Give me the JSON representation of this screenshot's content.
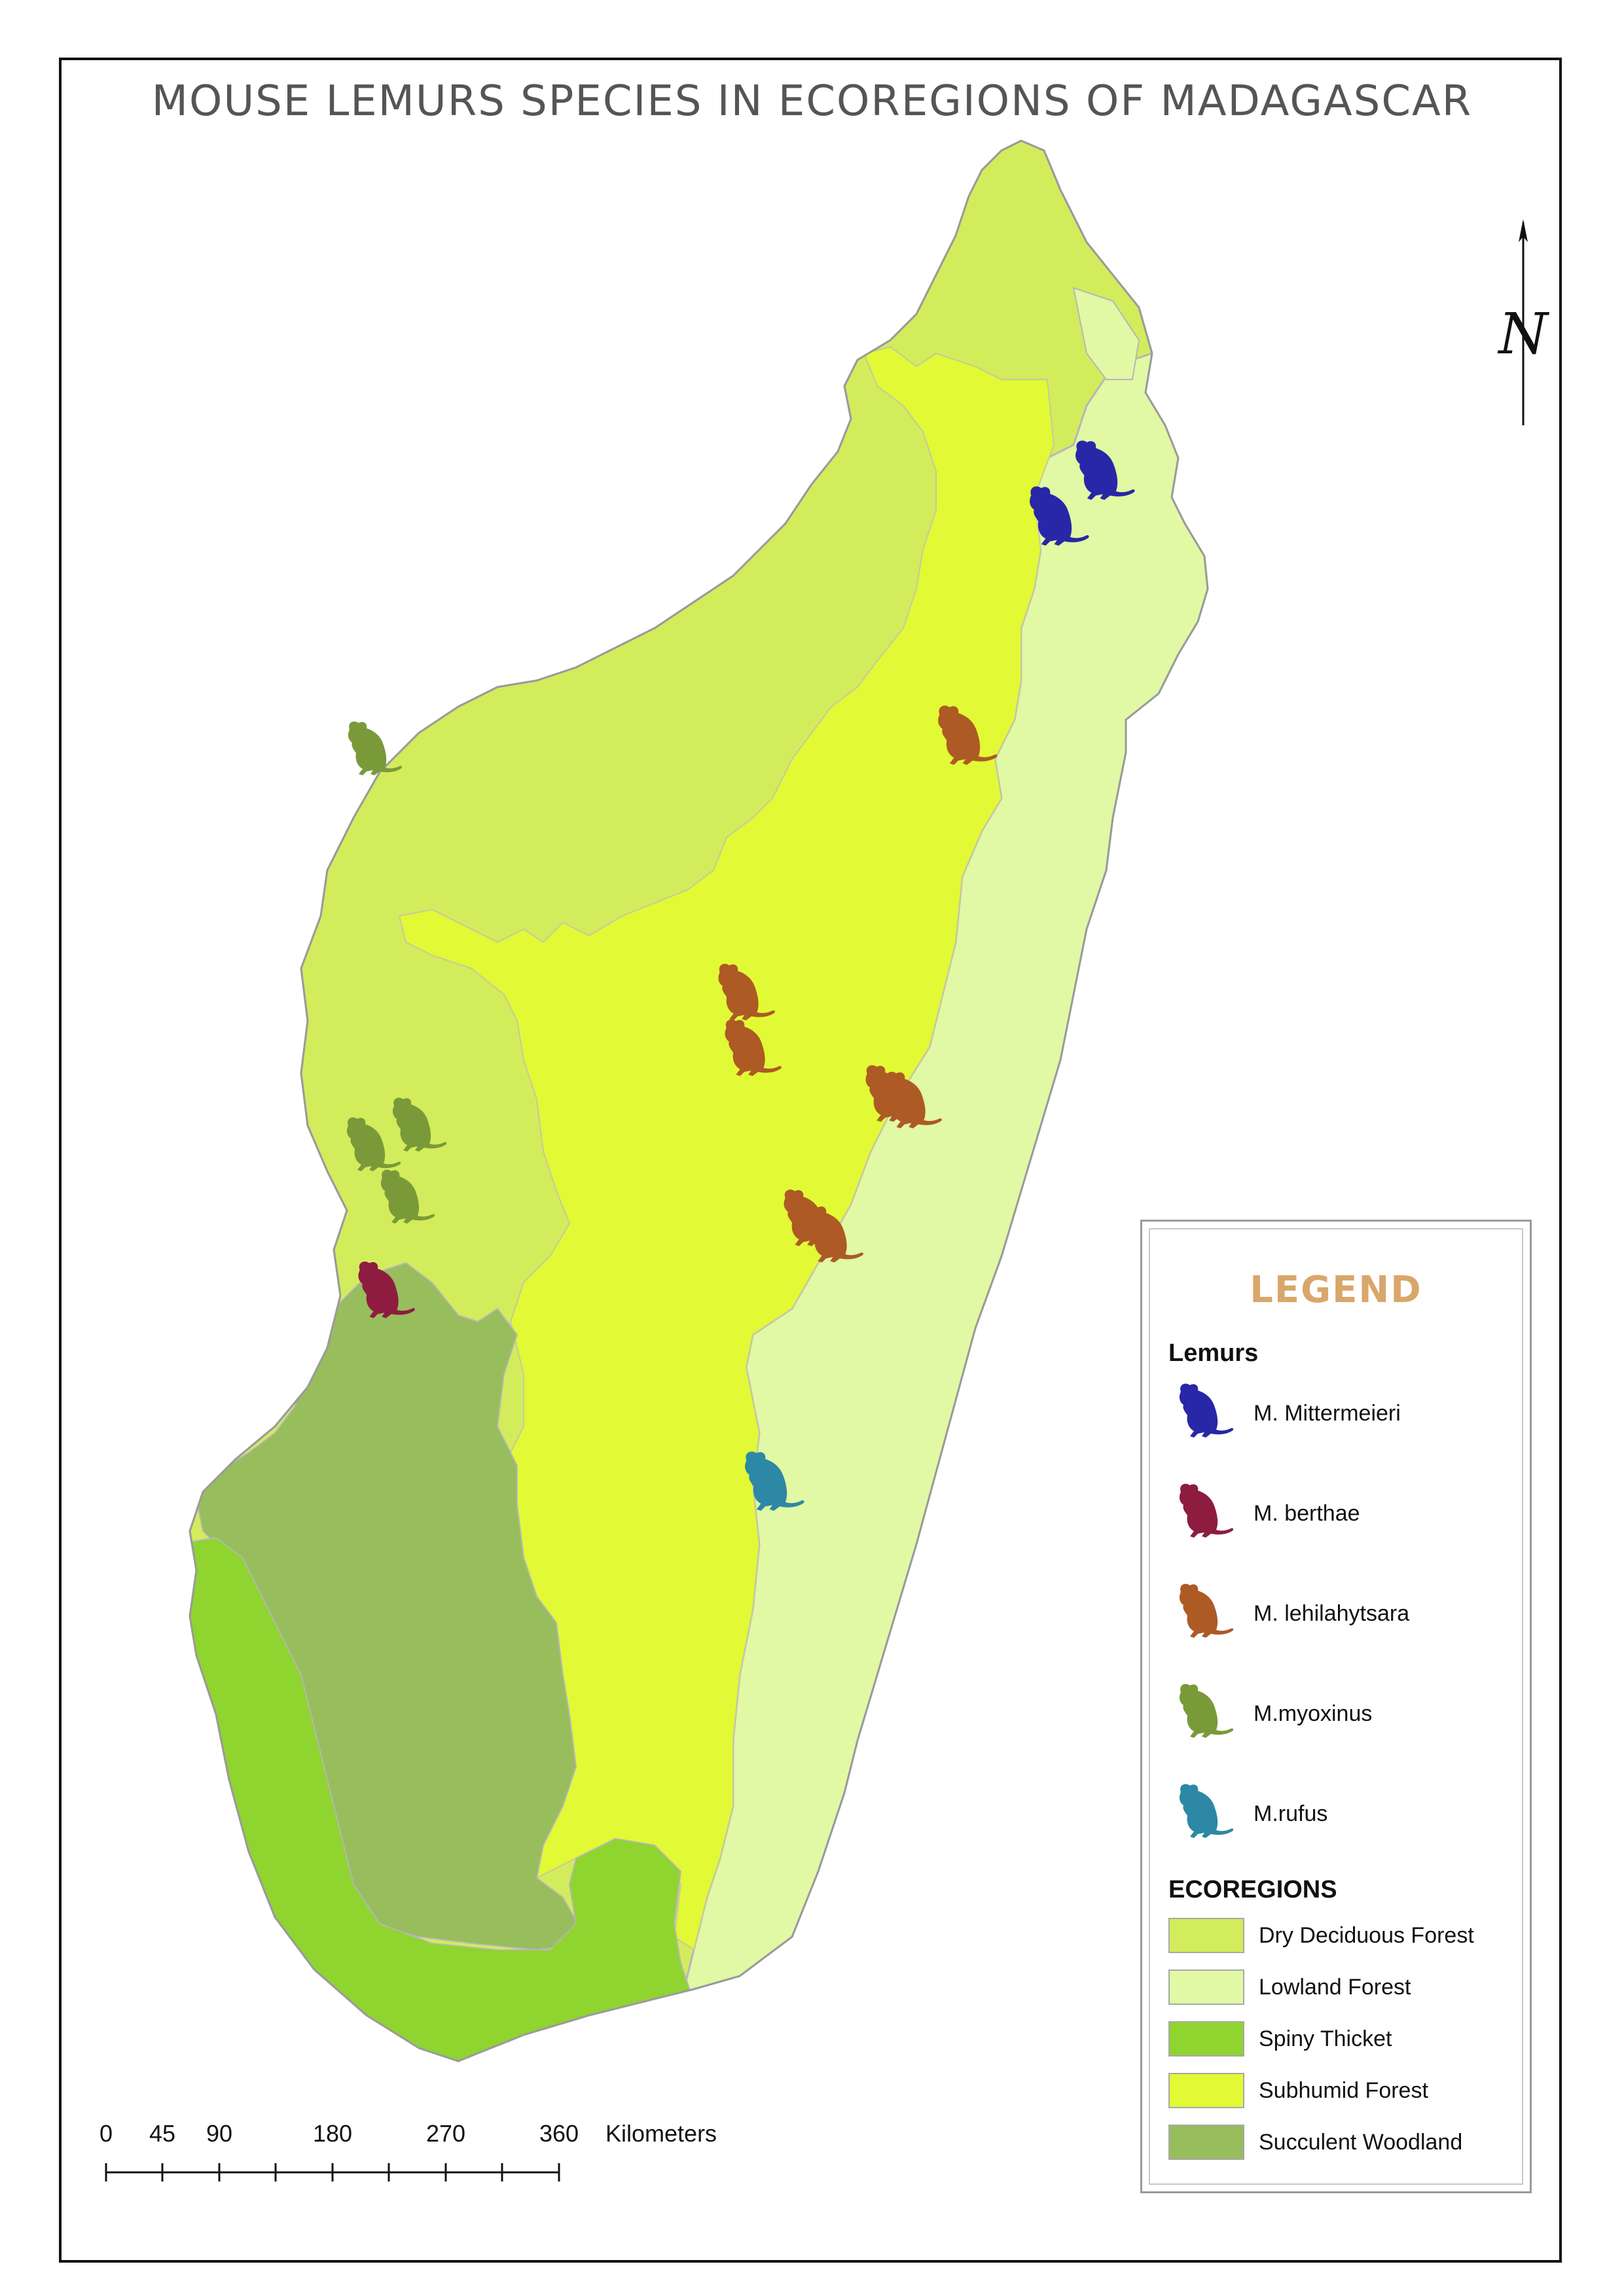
{
  "title": "MOUSE LEMURS SPECIES IN ECOREGIONS OF MADAGASCAR",
  "colors": {
    "dry_deciduous_forest": "#d3ec5c",
    "lowland_forest": "#e1f8a4",
    "spiny_thicket": "#8fd42f",
    "subhumid_forest": "#e2f935",
    "succulent_woodland": "#98bd5c",
    "m_mittermeieri": "#2727a8",
    "m_berthae": "#8e1c41",
    "m_lehilahytsara": "#ad5a25",
    "m_myoxinus": "#7a9a3a",
    "m_rufus": "#2c88a5",
    "legend_title": "#d9a66b"
  },
  "legend": {
    "title": "LEGEND",
    "lemurs_heading": "Lemurs",
    "lemurs": [
      {
        "label": "M. Mittermeieri",
        "color": "#2727a8",
        "icon": "mouse-lemur-silhouette"
      },
      {
        "label": "M. berthae",
        "color": "#8e1c41",
        "icon": "mouse-lemur-silhouette"
      },
      {
        "label": "M. lehilahytsara",
        "color": "#ad5a25",
        "icon": "mouse-lemur-silhouette"
      },
      {
        "label": "M.myoxinus",
        "color": "#7a9a3a",
        "icon": "mouse-lemur-silhouette"
      },
      {
        "label": "M.rufus",
        "color": "#2c88a5",
        "icon": "mouse-lemur-silhouette"
      }
    ],
    "ecoregions_heading": "ECOREGIONS",
    "ecoregions": [
      {
        "label": "Dry Deciduous Forest",
        "color": "#d3ec5c"
      },
      {
        "label": "Lowland Forest",
        "color": "#e1f8a4"
      },
      {
        "label": "Spiny Thicket",
        "color": "#8fd42f"
      },
      {
        "label": "Subhumid Forest",
        "color": "#e2f935"
      },
      {
        "label": "Succulent Woodland",
        "color": "#98bd5c"
      }
    ]
  },
  "north_arrow": {
    "letter": "N",
    "icon": "north-arrow-icon"
  },
  "scale_bar": {
    "ticks": [
      "0",
      "45",
      "90",
      "180",
      "270",
      "360"
    ],
    "unit": "Kilometers"
  }
}
